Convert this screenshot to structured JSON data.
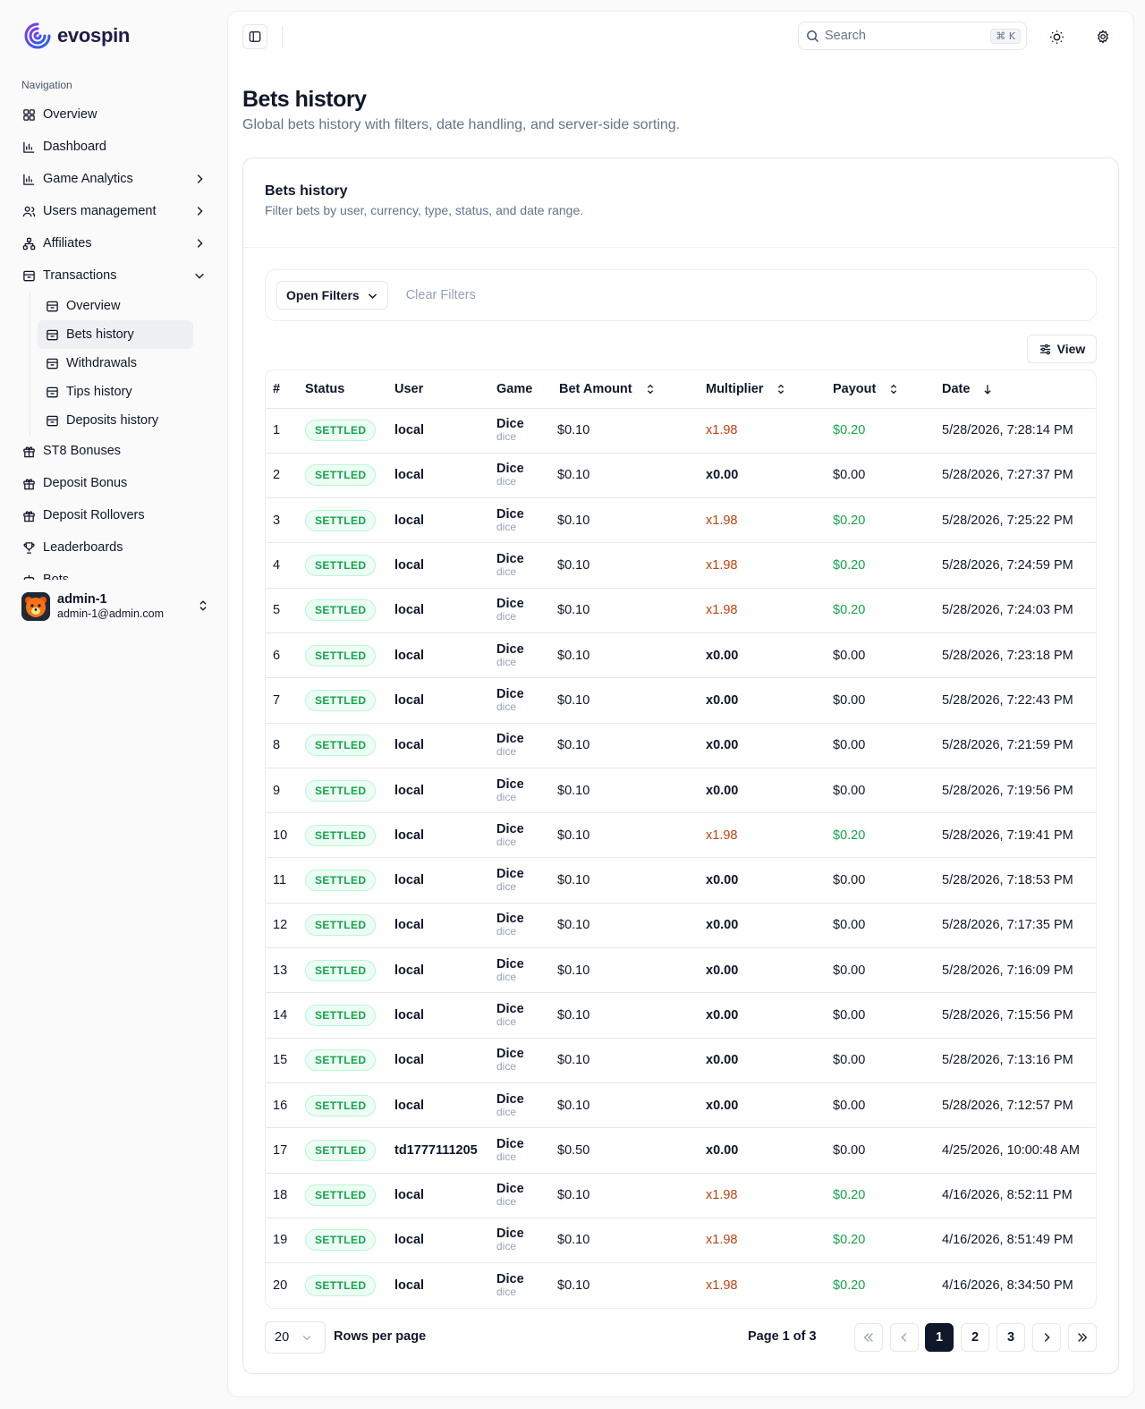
{
  "brand": {
    "name": "evospin"
  },
  "sidebar": {
    "section_label": "Navigation",
    "items": [
      {
        "label": "Overview",
        "icon": "grid-icon",
        "chevron": ""
      },
      {
        "label": "Dashboard",
        "icon": "bar-chart-icon",
        "chevron": ""
      },
      {
        "label": "Game Analytics",
        "icon": "bar-chart-icon",
        "chevron": "right"
      },
      {
        "label": "Users management",
        "icon": "users-icon",
        "chevron": "right"
      },
      {
        "label": "Affiliates",
        "icon": "network-icon",
        "chevron": "right"
      },
      {
        "label": "Transactions",
        "icon": "archive-icon",
        "chevron": "down"
      }
    ],
    "sub_items": [
      {
        "label": "Overview",
        "active": false
      },
      {
        "label": "Bets history",
        "active": true
      },
      {
        "label": "Withdrawals",
        "active": false
      },
      {
        "label": "Tips history",
        "active": false
      },
      {
        "label": "Deposits history",
        "active": false
      }
    ],
    "items_after": [
      {
        "label": "ST8 Bonuses",
        "icon": "gift-icon"
      },
      {
        "label": "Deposit Bonus",
        "icon": "gift-icon"
      },
      {
        "label": "Deposit Rollovers",
        "icon": "gift-icon"
      },
      {
        "label": "Leaderboards",
        "icon": "trophy-icon"
      },
      {
        "label": "Bots",
        "icon": "bot-icon"
      }
    ],
    "user": {
      "name": "admin-1",
      "email": "admin-1@admin.com"
    }
  },
  "topbar": {
    "search_placeholder": "Search",
    "search_shortcut": "⌘ K"
  },
  "page": {
    "title": "Bets history",
    "subtitle": "Global bets history with filters, date handling, and server-side sorting."
  },
  "card": {
    "title": "Bets history",
    "description": "Filter bets by user, currency, type, status, and date range.",
    "open_filters": "Open Filters",
    "clear_filters": "Clear Filters",
    "view": "View"
  },
  "table": {
    "columns": [
      "#",
      "Status",
      "User",
      "Game",
      "Bet Amount",
      "Multiplier",
      "Payout",
      "Date"
    ],
    "rows": [
      {
        "n": "1",
        "status": "SETTLED",
        "user": "local",
        "game": "Dice",
        "game_id": "dice",
        "bet": "$0.10",
        "mult": "x1.98",
        "payout": "$0.20",
        "date": "5/28/2026, 7:28:14 PM",
        "win": true
      },
      {
        "n": "2",
        "status": "SETTLED",
        "user": "local",
        "game": "Dice",
        "game_id": "dice",
        "bet": "$0.10",
        "mult": "x0.00",
        "payout": "$0.00",
        "date": "5/28/2026, 7:27:37 PM",
        "win": false
      },
      {
        "n": "3",
        "status": "SETTLED",
        "user": "local",
        "game": "Dice",
        "game_id": "dice",
        "bet": "$0.10",
        "mult": "x1.98",
        "payout": "$0.20",
        "date": "5/28/2026, 7:25:22 PM",
        "win": true
      },
      {
        "n": "4",
        "status": "SETTLED",
        "user": "local",
        "game": "Dice",
        "game_id": "dice",
        "bet": "$0.10",
        "mult": "x1.98",
        "payout": "$0.20",
        "date": "5/28/2026, 7:24:59 PM",
        "win": true
      },
      {
        "n": "5",
        "status": "SETTLED",
        "user": "local",
        "game": "Dice",
        "game_id": "dice",
        "bet": "$0.10",
        "mult": "x1.98",
        "payout": "$0.20",
        "date": "5/28/2026, 7:24:03 PM",
        "win": true
      },
      {
        "n": "6",
        "status": "SETTLED",
        "user": "local",
        "game": "Dice",
        "game_id": "dice",
        "bet": "$0.10",
        "mult": "x0.00",
        "payout": "$0.00",
        "date": "5/28/2026, 7:23:18 PM",
        "win": false
      },
      {
        "n": "7",
        "status": "SETTLED",
        "user": "local",
        "game": "Dice",
        "game_id": "dice",
        "bet": "$0.10",
        "mult": "x0.00",
        "payout": "$0.00",
        "date": "5/28/2026, 7:22:43 PM",
        "win": false
      },
      {
        "n": "8",
        "status": "SETTLED",
        "user": "local",
        "game": "Dice",
        "game_id": "dice",
        "bet": "$0.10",
        "mult": "x0.00",
        "payout": "$0.00",
        "date": "5/28/2026, 7:21:59 PM",
        "win": false
      },
      {
        "n": "9",
        "status": "SETTLED",
        "user": "local",
        "game": "Dice",
        "game_id": "dice",
        "bet": "$0.10",
        "mult": "x0.00",
        "payout": "$0.00",
        "date": "5/28/2026, 7:19:56 PM",
        "win": false
      },
      {
        "n": "10",
        "status": "SETTLED",
        "user": "local",
        "game": "Dice",
        "game_id": "dice",
        "bet": "$0.10",
        "mult": "x1.98",
        "payout": "$0.20",
        "date": "5/28/2026, 7:19:41 PM",
        "win": true
      },
      {
        "n": "11",
        "status": "SETTLED",
        "user": "local",
        "game": "Dice",
        "game_id": "dice",
        "bet": "$0.10",
        "mult": "x0.00",
        "payout": "$0.00",
        "date": "5/28/2026, 7:18:53 PM",
        "win": false
      },
      {
        "n": "12",
        "status": "SETTLED",
        "user": "local",
        "game": "Dice",
        "game_id": "dice",
        "bet": "$0.10",
        "mult": "x0.00",
        "payout": "$0.00",
        "date": "5/28/2026, 7:17:35 PM",
        "win": false
      },
      {
        "n": "13",
        "status": "SETTLED",
        "user": "local",
        "game": "Dice",
        "game_id": "dice",
        "bet": "$0.10",
        "mult": "x0.00",
        "payout": "$0.00",
        "date": "5/28/2026, 7:16:09 PM",
        "win": false
      },
      {
        "n": "14",
        "status": "SETTLED",
        "user": "local",
        "game": "Dice",
        "game_id": "dice",
        "bet": "$0.10",
        "mult": "x0.00",
        "payout": "$0.00",
        "date": "5/28/2026, 7:15:56 PM",
        "win": false
      },
      {
        "n": "15",
        "status": "SETTLED",
        "user": "local",
        "game": "Dice",
        "game_id": "dice",
        "bet": "$0.10",
        "mult": "x0.00",
        "payout": "$0.00",
        "date": "5/28/2026, 7:13:16 PM",
        "win": false
      },
      {
        "n": "16",
        "status": "SETTLED",
        "user": "local",
        "game": "Dice",
        "game_id": "dice",
        "bet": "$0.10",
        "mult": "x0.00",
        "payout": "$0.00",
        "date": "5/28/2026, 7:12:57 PM",
        "win": false
      },
      {
        "n": "17",
        "status": "SETTLED",
        "user": "td1777111205",
        "game": "Dice",
        "game_id": "dice",
        "bet": "$0.50",
        "mult": "x0.00",
        "payout": "$0.00",
        "date": "4/25/2026, 10:00:48 AM",
        "win": false
      },
      {
        "n": "18",
        "status": "SETTLED",
        "user": "local",
        "game": "Dice",
        "game_id": "dice",
        "bet": "$0.10",
        "mult": "x1.98",
        "payout": "$0.20",
        "date": "4/16/2026, 8:52:11 PM",
        "win": true
      },
      {
        "n": "19",
        "status": "SETTLED",
        "user": "local",
        "game": "Dice",
        "game_id": "dice",
        "bet": "$0.10",
        "mult": "x1.98",
        "payout": "$0.20",
        "date": "4/16/2026, 8:51:49 PM",
        "win": true
      },
      {
        "n": "20",
        "status": "SETTLED",
        "user": "local",
        "game": "Dice",
        "game_id": "dice",
        "bet": "$0.10",
        "mult": "x1.98",
        "payout": "$0.20",
        "date": "4/16/2026, 8:34:50 PM",
        "win": true
      }
    ]
  },
  "pagination": {
    "rows_per_page_value": "20",
    "rows_per_page_label": "Rows per page",
    "page_info": "Page 1 of 3",
    "pages": [
      "1",
      "2",
      "3"
    ],
    "current_page": "1"
  },
  "colors": {
    "accent": "#0f172a",
    "win_multiplier": "#c2410c",
    "win_payout": "#16a34a",
    "badge_text": "#16a34a",
    "badge_bg": "#ecfdf5"
  }
}
